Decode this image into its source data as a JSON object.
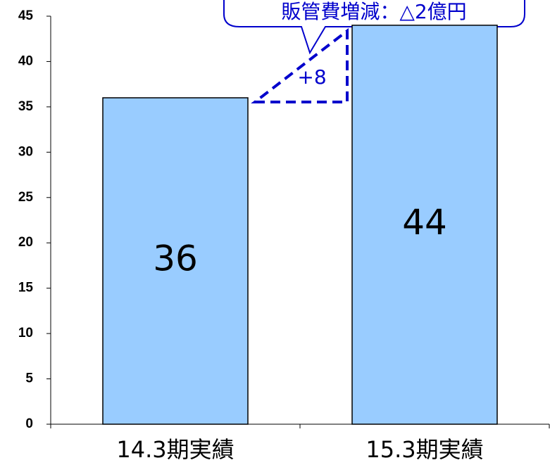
{
  "chart_data": {
    "type": "bar",
    "categories": [
      "14.3期実績",
      "15.3期実績"
    ],
    "values": [
      36,
      44
    ],
    "color": "#99ccff",
    "ylim": [
      0,
      45
    ],
    "yticks": [
      0,
      5,
      10,
      15,
      20,
      25,
      30,
      35,
      40,
      45
    ],
    "annotations": [
      "+8",
      "販管費増減：△2億円"
    ]
  }
}
